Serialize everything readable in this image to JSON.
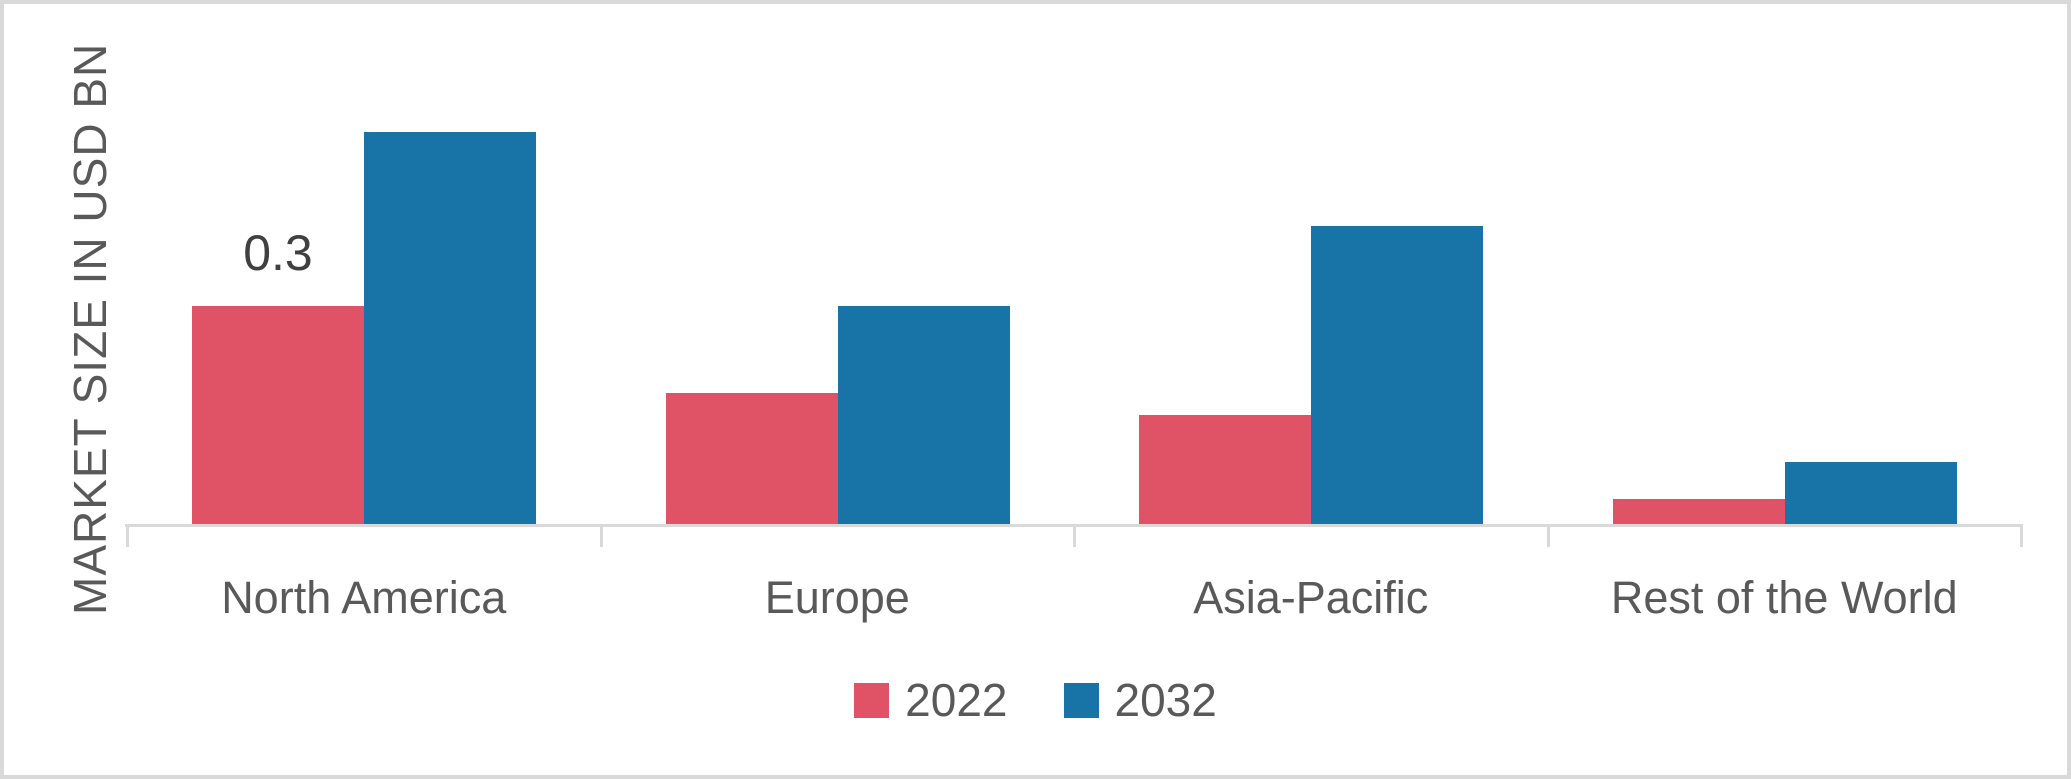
{
  "window": {
    "background": "#FFFFFF",
    "border_color": "#D9D9D9"
  },
  "chart_data": {
    "type": "bar",
    "title": "",
    "categories": [
      "North America",
      "Europe",
      "Asia-Pacific",
      "Rest of the World"
    ],
    "series": [
      {
        "name": "2022",
        "color": "#E05366",
        "values": [
          0.3,
          0.18,
          0.15,
          0.035
        ]
      },
      {
        "name": "2032",
        "color": "#1874A6",
        "values": [
          0.54,
          0.3,
          0.41,
          0.085
        ]
      }
    ],
    "data_labels": [
      {
        "category": "North America",
        "series": "2022",
        "text": "0.3"
      }
    ],
    "xlabel": "",
    "ylabel": "MARKET SIZE IN USD BN",
    "ylim": [
      0,
      0.6
    ],
    "y_axis_ticks_visible": false,
    "grid": false,
    "legend_position": "bottom",
    "axis_color": "#D9D9D9",
    "label_color": "#595959",
    "data_label_color": "#404040"
  }
}
